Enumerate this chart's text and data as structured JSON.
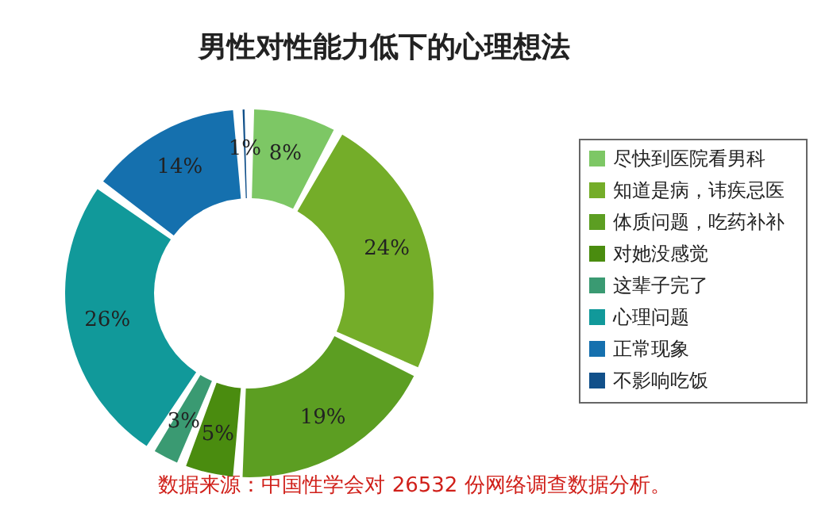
{
  "chart_data": {
    "type": "donut",
    "title": "男性对性能力低下的心理想法",
    "categories": [
      "尽快到医院看男科",
      "知道是病，讳疾忌医",
      "体质问题，吃药补补",
      "对她没感觉",
      "这辈子完了",
      "心理问题",
      "正常现象",
      "不影响吃饭"
    ],
    "values": [
      8,
      24,
      19,
      5,
      3,
      26,
      14,
      1
    ],
    "colors": [
      "#7dc765",
      "#74ad29",
      "#5c9e22",
      "#4a8c0f",
      "#3a9a72",
      "#11999a",
      "#1570ae",
      "#11508a"
    ],
    "value_labels": [
      "8%",
      "24%",
      "19%",
      "5%",
      "3%",
      "26%",
      "14%",
      "1%"
    ],
    "legend": "right",
    "annotations": [
      "数据来源：中国性学会对 26532 份网络调查数据分析。"
    ]
  }
}
